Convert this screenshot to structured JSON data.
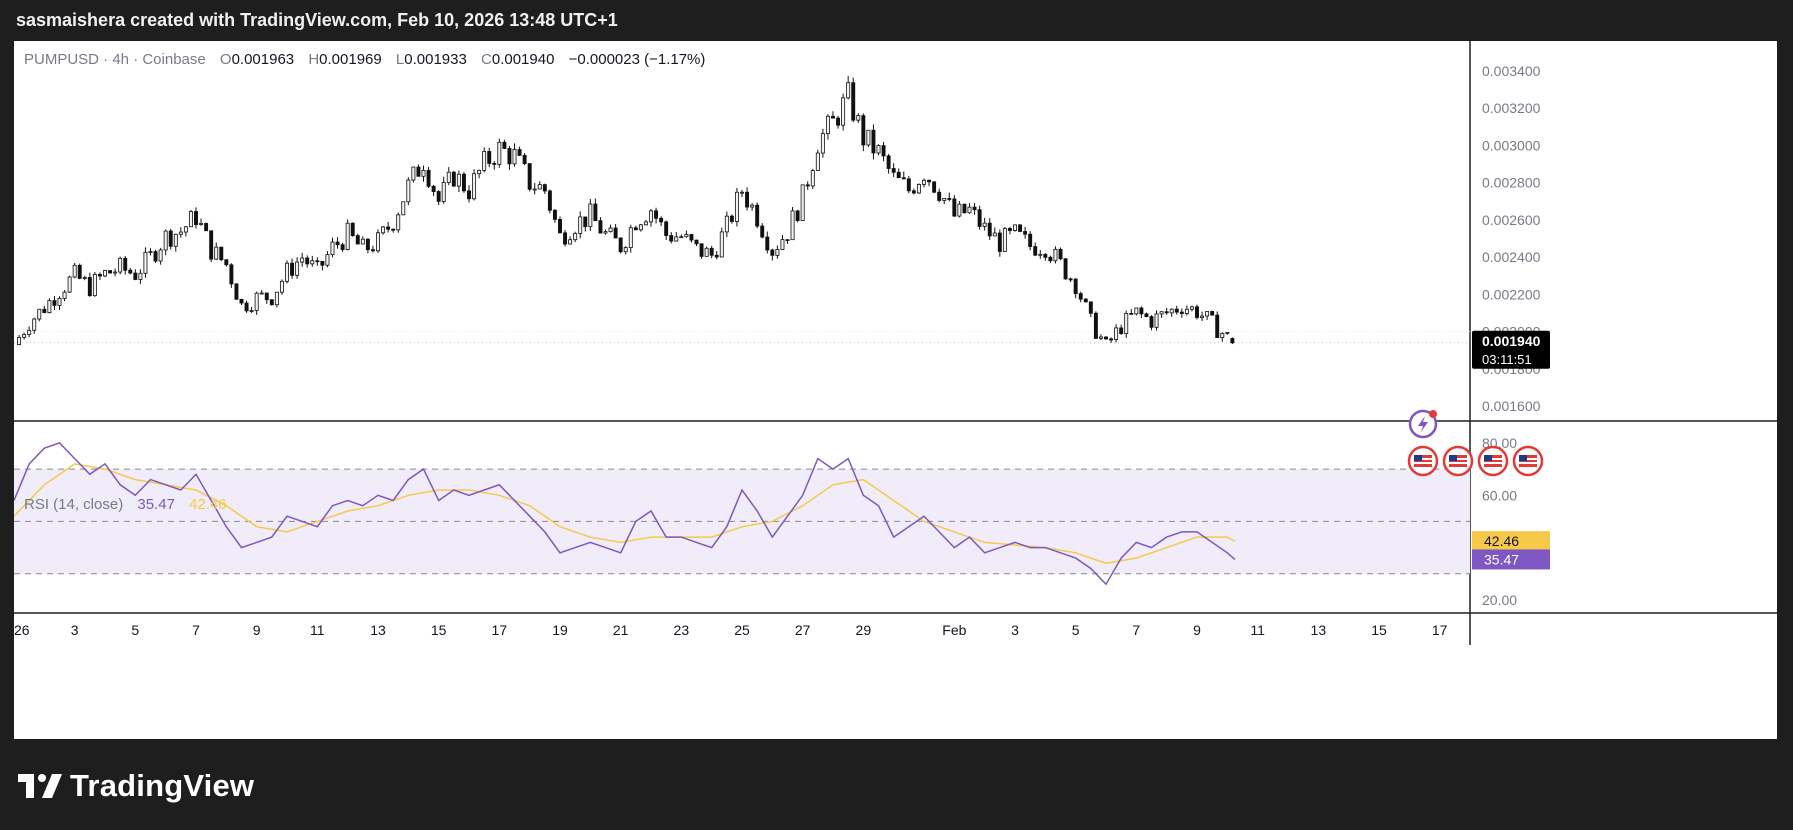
{
  "header": {
    "text": "sasmaishera created with TradingView.com, Feb 10, 2026 13:48 UTC+1"
  },
  "brand": {
    "name": "TradingView",
    "logo_icon": "tradingview-logo-icon"
  },
  "legend": {
    "symbol": "PUMPUSD · 4h · Coinbase",
    "o_label": "O",
    "o_value": "0.001963",
    "h_label": "H",
    "h_value": "0.001969",
    "l_label": "L",
    "l_value": "0.001933",
    "c_label": "C",
    "c_value": "0.001940",
    "change": "−0.000023 (−1.17%)"
  },
  "rsi_legend": {
    "label": "RSI (14, close)",
    "rsi_value": "35.47",
    "ma_value": "42.46"
  },
  "price_badge": {
    "price": "0.001940",
    "countdown": "03:11:51"
  },
  "rsi_badges": {
    "ma": "42.46",
    "rsi": "35.47"
  },
  "colors": {
    "up": "#f2f2f2",
    "down": "#111111",
    "rsi": "#7e57c2",
    "rsi_ma": "#f7c948",
    "rsi_band": "#f0ecfa",
    "lightning": "#7e57c2",
    "flag_ring": "#e53935"
  },
  "events": {
    "lightning_icon": "lightning-event-icon",
    "flags": [
      "us-flag-icon",
      "us-flag-icon",
      "us-flag-icon",
      "us-flag-icon"
    ]
  },
  "chart_data": [
    {
      "type": "candlestick",
      "title": "PUMPUSD · 4h · Coinbase",
      "ylim": [
        0.00152,
        0.00356
      ],
      "y_ticks": [
        "0.003400",
        "0.003200",
        "0.003000",
        "0.002800",
        "0.002600",
        "0.002400",
        "0.002200",
        "0.002000",
        "0.001800",
        "0.001600"
      ],
      "x_ticks": [
        "26",
        "3",
        "5",
        "7",
        "9",
        "11",
        "13",
        "15",
        "17",
        "19",
        "21",
        "23",
        "25",
        "27",
        "29",
        "Feb",
        "3",
        "5",
        "7",
        "9",
        "11",
        "13",
        "15",
        "17"
      ],
      "x_tick_dates": [
        "2026-01-01",
        "2026-01-03",
        "2026-01-05",
        "2026-01-07",
        "2026-01-09",
        "2026-01-11",
        "2026-01-13",
        "2026-01-15",
        "2026-01-17",
        "2026-01-19",
        "2026-01-21",
        "2026-01-23",
        "2026-01-25",
        "2026-01-27",
        "2026-01-29",
        "2026-02-01",
        "2026-02-03",
        "2026-02-05",
        "2026-02-07",
        "2026-02-09",
        "2026-02-11",
        "2026-02-13",
        "2026-02-15",
        "2026-02-17"
      ],
      "x_range": [
        "2026-01-01",
        "2026-02-18"
      ],
      "last_date": "2026-02-10",
      "last_ohlc": {
        "open": 0.001963,
        "high": 0.001969,
        "low": 0.001933,
        "close": 0.00194
      },
      "close_path": [
        [
          "2026-01-01",
          0.00193
        ],
        [
          "2026-01-01T12",
          0.00205
        ],
        [
          "2026-01-02",
          0.00213
        ],
        [
          "2026-01-02T12",
          0.00222
        ],
        [
          "2026-01-03",
          0.0023
        ],
        [
          "2026-01-03T12",
          0.00224
        ],
        [
          "2026-01-04",
          0.00231
        ],
        [
          "2026-01-04T12",
          0.00234
        ],
        [
          "2026-01-05",
          0.00231
        ],
        [
          "2026-01-05T12",
          0.0024
        ],
        [
          "2026-01-06",
          0.00251
        ],
        [
          "2026-01-06T12",
          0.00254
        ],
        [
          "2026-01-07",
          0.00262
        ],
        [
          "2026-01-07T12",
          0.00244
        ],
        [
          "2026-01-08",
          0.00236
        ],
        [
          "2026-01-08T12",
          0.00214
        ],
        [
          "2026-01-09",
          0.00218
        ],
        [
          "2026-01-09T12",
          0.00219
        ],
        [
          "2026-01-10",
          0.00232
        ],
        [
          "2026-01-10T12",
          0.0024
        ],
        [
          "2026-01-11",
          0.00232
        ],
        [
          "2026-01-11T12",
          0.00245
        ],
        [
          "2026-01-12",
          0.00252
        ],
        [
          "2026-01-12T12",
          0.00244
        ],
        [
          "2026-01-13",
          0.00248
        ],
        [
          "2026-01-13T12",
          0.0026
        ],
        [
          "2026-01-14",
          0.00278
        ],
        [
          "2026-01-14T12",
          0.00292
        ],
        [
          "2026-01-15",
          0.0027
        ],
        [
          "2026-01-15T12",
          0.00284
        ],
        [
          "2026-01-16",
          0.00276
        ],
        [
          "2026-01-16T12",
          0.0029
        ],
        [
          "2026-01-17",
          0.00298
        ],
        [
          "2026-01-17T12",
          0.00294
        ],
        [
          "2026-01-18",
          0.0028
        ],
        [
          "2026-01-18T12",
          0.00276
        ],
        [
          "2026-01-19",
          0.00251
        ],
        [
          "2026-01-19T12",
          0.00258
        ],
        [
          "2026-01-20",
          0.00262
        ],
        [
          "2026-01-20T12",
          0.00252
        ],
        [
          "2026-01-21",
          0.00246
        ],
        [
          "2026-01-21T12",
          0.0026
        ],
        [
          "2026-01-22",
          0.00266
        ],
        [
          "2026-01-22T12",
          0.00252
        ],
        [
          "2026-01-23",
          0.00251
        ],
        [
          "2026-01-23T12",
          0.00244
        ],
        [
          "2026-01-24",
          0.00241
        ],
        [
          "2026-01-24T12",
          0.00256
        ],
        [
          "2026-01-25",
          0.00276
        ],
        [
          "2026-01-25T12",
          0.00262
        ],
        [
          "2026-01-26",
          0.00244
        ],
        [
          "2026-01-26T12",
          0.00254
        ],
        [
          "2026-01-27",
          0.00272
        ],
        [
          "2026-01-27T12",
          0.00302
        ],
        [
          "2026-01-28",
          0.00312
        ],
        [
          "2026-01-28T12",
          0.00326
        ],
        [
          "2026-01-29",
          0.00304
        ],
        [
          "2026-01-29T12",
          0.00296
        ],
        [
          "2026-01-30",
          0.00282
        ],
        [
          "2026-01-30T12",
          0.00276
        ],
        [
          "2026-01-31",
          0.00286
        ],
        [
          "2026-01-31T12",
          0.00276
        ],
        [
          "2026-02-01",
          0.00262
        ],
        [
          "2026-02-01T12",
          0.00265
        ],
        [
          "2026-02-02",
          0.00255
        ],
        [
          "2026-02-02T12",
          0.00248
        ],
        [
          "2026-02-03",
          0.00252
        ],
        [
          "2026-02-03T12",
          0.00246
        ],
        [
          "2026-02-04",
          0.00246
        ],
        [
          "2026-02-04T12",
          0.00236
        ],
        [
          "2026-02-05",
          0.00226
        ],
        [
          "2026-02-05T12",
          0.00205
        ],
        [
          "2026-02-06",
          0.00192
        ],
        [
          "2026-02-06T12",
          0.00203
        ],
        [
          "2026-02-07",
          0.0021
        ],
        [
          "2026-02-07T12",
          0.00206
        ],
        [
          "2026-02-08",
          0.0021
        ],
        [
          "2026-02-08T12",
          0.00214
        ],
        [
          "2026-02-09",
          0.00211
        ],
        [
          "2026-02-09T12",
          0.00204
        ],
        [
          "2026-02-10",
          0.00197
        ],
        [
          "2026-02-10T06",
          0.00194
        ]
      ]
    },
    {
      "type": "line",
      "title": "RSI (14, close)",
      "ylim": [
        15,
        88
      ],
      "y_ticks": [
        "80.00",
        "60.00",
        "20.00"
      ],
      "bands": [
        30,
        50,
        70
      ],
      "x_range": [
        "2026-01-01",
        "2026-02-18"
      ],
      "series": [
        {
          "name": "RSI",
          "values": [
            [
              "2026-01-01",
              58
            ],
            [
              "2026-01-01T12",
              72
            ],
            [
              "2026-01-02",
              78
            ],
            [
              "2026-01-02T12",
              80
            ],
            [
              "2026-01-03",
              74
            ],
            [
              "2026-01-03T12",
              68
            ],
            [
              "2026-01-04",
              72
            ],
            [
              "2026-01-04T12",
              64
            ],
            [
              "2026-01-05",
              60
            ],
            [
              "2026-01-05T12",
              66
            ],
            [
              "2026-01-06",
              64
            ],
            [
              "2026-01-06T12",
              62
            ],
            [
              "2026-01-07",
              68
            ],
            [
              "2026-01-07T12",
              58
            ],
            [
              "2026-01-08",
              48
            ],
            [
              "2026-01-08T12",
              40
            ],
            [
              "2026-01-09",
              42
            ],
            [
              "2026-01-09T12",
              44
            ],
            [
              "2026-01-10",
              52
            ],
            [
              "2026-01-10T12",
              50
            ],
            [
              "2026-01-11",
              48
            ],
            [
              "2026-01-11T12",
              56
            ],
            [
              "2026-01-12",
              58
            ],
            [
              "2026-01-12T12",
              56
            ],
            [
              "2026-01-13",
              60
            ],
            [
              "2026-01-13T12",
              58
            ],
            [
              "2026-01-14",
              66
            ],
            [
              "2026-01-14T12",
              70
            ],
            [
              "2026-01-15",
              58
            ],
            [
              "2026-01-15T12",
              62
            ],
            [
              "2026-01-16",
              60
            ],
            [
              "2026-01-16T12",
              62
            ],
            [
              "2026-01-17",
              64
            ],
            [
              "2026-01-17T12",
              58
            ],
            [
              "2026-01-18",
              52
            ],
            [
              "2026-01-18T12",
              46
            ],
            [
              "2026-01-19",
              38
            ],
            [
              "2026-01-19T12",
              40
            ],
            [
              "2026-01-20",
              42
            ],
            [
              "2026-01-20T12",
              40
            ],
            [
              "2026-01-21",
              38
            ],
            [
              "2026-01-21T12",
              50
            ],
            [
              "2026-01-22",
              54
            ],
            [
              "2026-01-22T12",
              44
            ],
            [
              "2026-01-23",
              44
            ],
            [
              "2026-01-23T12",
              42
            ],
            [
              "2026-01-24",
              40
            ],
            [
              "2026-01-24T12",
              48
            ],
            [
              "2026-01-25",
              62
            ],
            [
              "2026-01-25T12",
              54
            ],
            [
              "2026-01-26",
              44
            ],
            [
              "2026-01-26T12",
              52
            ],
            [
              "2026-01-27",
              60
            ],
            [
              "2026-01-27T12",
              74
            ],
            [
              "2026-01-28",
              70
            ],
            [
              "2026-01-28T12",
              74
            ],
            [
              "2026-01-29",
              60
            ],
            [
              "2026-01-29T12",
              56
            ],
            [
              "2026-01-30",
              44
            ],
            [
              "2026-01-30T12",
              48
            ],
            [
              "2026-01-31",
              52
            ],
            [
              "2026-01-31T12",
              46
            ],
            [
              "2026-02-01",
              40
            ],
            [
              "2026-02-01T12",
              44
            ],
            [
              "2026-02-02",
              38
            ],
            [
              "2026-02-02T12",
              40
            ],
            [
              "2026-02-03",
              42
            ],
            [
              "2026-02-03T12",
              40
            ],
            [
              "2026-02-04",
              40
            ],
            [
              "2026-02-04T12",
              38
            ],
            [
              "2026-02-05",
              36
            ],
            [
              "2026-02-05T12",
              32
            ],
            [
              "2026-02-06",
              26
            ],
            [
              "2026-02-06T12",
              36
            ],
            [
              "2026-02-07",
              42
            ],
            [
              "2026-02-07T12",
              40
            ],
            [
              "2026-02-08",
              44
            ],
            [
              "2026-02-08T12",
              46
            ],
            [
              "2026-02-09",
              46
            ],
            [
              "2026-02-09T12",
              42
            ],
            [
              "2026-02-10",
              38
            ],
            [
              "2026-02-10T06",
              35.47
            ]
          ]
        },
        {
          "name": "RSI-based MA",
          "values": [
            [
              "2026-01-01",
              52
            ],
            [
              "2026-01-02",
              64
            ],
            [
              "2026-01-03",
              72
            ],
            [
              "2026-01-04",
              70
            ],
            [
              "2026-01-05",
              66
            ],
            [
              "2026-01-06",
              64
            ],
            [
              "2026-01-07",
              62
            ],
            [
              "2026-01-08",
              56
            ],
            [
              "2026-01-09",
              48
            ],
            [
              "2026-01-10",
              46
            ],
            [
              "2026-01-11",
              50
            ],
            [
              "2026-01-12",
              54
            ],
            [
              "2026-01-13",
              56
            ],
            [
              "2026-01-14",
              60
            ],
            [
              "2026-01-15",
              62
            ],
            [
              "2026-01-16",
              62
            ],
            [
              "2026-01-17",
              60
            ],
            [
              "2026-01-18",
              56
            ],
            [
              "2026-01-19",
              48
            ],
            [
              "2026-01-20",
              44
            ],
            [
              "2026-01-21",
              42
            ],
            [
              "2026-01-22",
              44
            ],
            [
              "2026-01-23",
              44
            ],
            [
              "2026-01-24",
              44
            ],
            [
              "2026-01-25",
              48
            ],
            [
              "2026-01-26",
              50
            ],
            [
              "2026-01-27",
              56
            ],
            [
              "2026-01-28",
              64
            ],
            [
              "2026-01-29",
              66
            ],
            [
              "2026-01-30",
              58
            ],
            [
              "2026-01-31",
              50
            ],
            [
              "2026-02-01",
              46
            ],
            [
              "2026-02-02",
              42
            ],
            [
              "2026-02-03",
              41
            ],
            [
              "2026-02-04",
              40
            ],
            [
              "2026-02-05",
              38
            ],
            [
              "2026-02-06",
              34
            ],
            [
              "2026-02-07",
              36
            ],
            [
              "2026-02-08",
              40
            ],
            [
              "2026-02-09",
              44
            ],
            [
              "2026-02-10",
              44
            ],
            [
              "2026-02-10T06",
              42.46
            ]
          ]
        }
      ]
    }
  ]
}
